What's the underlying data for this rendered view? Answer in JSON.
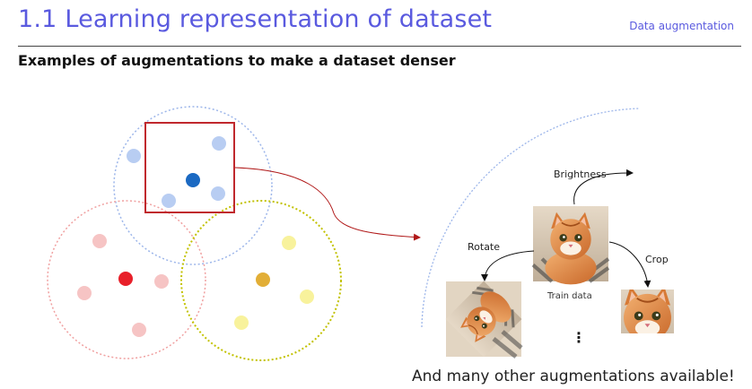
{
  "header": {
    "title": "1.1 Learning representation of dataset",
    "section": "Data augmentation",
    "subtitle": "Examples of augmentations to make a dataset denser"
  },
  "diagram": {
    "labels": {
      "brightness": "Brightness",
      "rotate": "Rotate",
      "crop": "Crop",
      "train_data": "Train data",
      "more": "⋮"
    },
    "footer": "And many other augmentations available!",
    "colors": {
      "blue_cluster": "#6f9be0",
      "red_cluster": "#f0a0a0",
      "yellow_cluster": "#c8c800",
      "highlight_box": "#c0282d",
      "arrow": "#b01818"
    }
  }
}
